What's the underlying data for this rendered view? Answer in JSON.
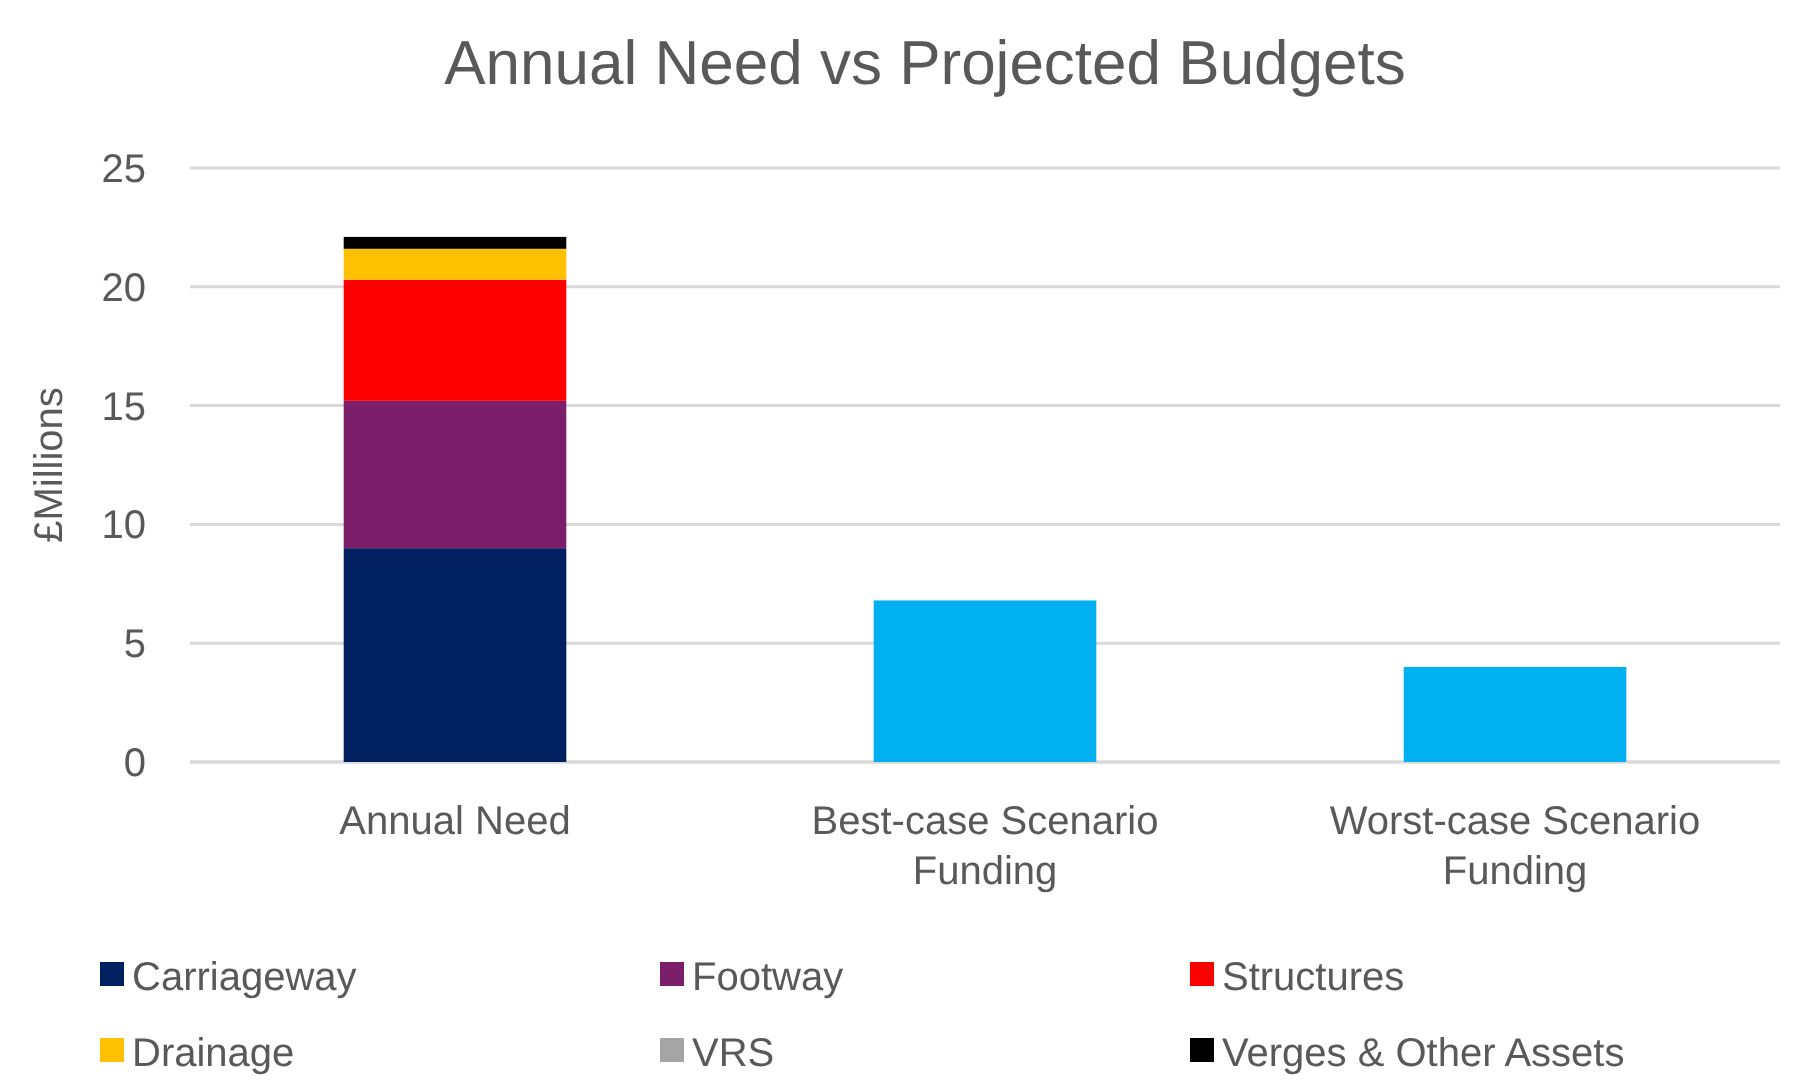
{
  "chart_data": {
    "type": "bar",
    "title": "Annual Need vs Projected Budgets",
    "ylabel": "£Millions",
    "categories": [
      "Annual Need",
      "Best-case Scenario Funding",
      "Worst-case Scenario Funding"
    ],
    "stacked": true,
    "ylim": [
      0,
      25
    ],
    "yticks": [
      0,
      5,
      10,
      15,
      20,
      25
    ],
    "grid": "y",
    "legend": "bottom",
    "series": [
      {
        "name": "Carriageway",
        "color": "#002060",
        "values": [
          9.0,
          null,
          null
        ]
      },
      {
        "name": "Footway",
        "color": "#7b1f6a",
        "values": [
          6.2,
          null,
          null
        ]
      },
      {
        "name": "Structures",
        "color": "#ff0000",
        "values": [
          5.1,
          null,
          null
        ]
      },
      {
        "name": "Drainage",
        "color": "#ffc000",
        "values": [
          1.3,
          null,
          null
        ]
      },
      {
        "name": "VRS",
        "color": "#a5a5a5",
        "values": [
          0,
          null,
          null
        ]
      },
      {
        "name": "Verges & Other Assets",
        "color": "#000000",
        "values": [
          0.5,
          null,
          null
        ]
      },
      {
        "color": "#00b0f0",
        "values": [
          null,
          6.8,
          4.0
        ]
      }
    ]
  }
}
